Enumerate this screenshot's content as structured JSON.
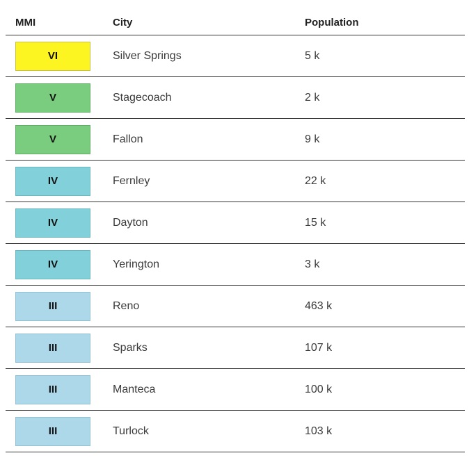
{
  "table": {
    "headers": {
      "mmi": "MMI",
      "city": "City",
      "population": "Population"
    },
    "rows": [
      {
        "mmi": "VI",
        "city": "Silver Springs",
        "population": "5 k",
        "color": "#fdf522",
        "border": "#c8c24a"
      },
      {
        "mmi": "V",
        "city": "Stagecoach",
        "population": "2 k",
        "color": "#7acc7e",
        "border": "#5fae63"
      },
      {
        "mmi": "V",
        "city": "Fallon",
        "population": "9 k",
        "color": "#7acc7e",
        "border": "#5fae63"
      },
      {
        "mmi": "IV",
        "city": "Fernley",
        "population": "22 k",
        "color": "#82d1da",
        "border": "#6bb6bf"
      },
      {
        "mmi": "IV",
        "city": "Dayton",
        "population": "15 k",
        "color": "#82d1da",
        "border": "#6bb6bf"
      },
      {
        "mmi": "IV",
        "city": "Yerington",
        "population": "3 k",
        "color": "#82d1da",
        "border": "#6bb6bf"
      },
      {
        "mmi": "III",
        "city": "Reno",
        "population": "463 k",
        "color": "#add8ea",
        "border": "#93c0d2"
      },
      {
        "mmi": "III",
        "city": "Sparks",
        "population": "107 k",
        "color": "#add8ea",
        "border": "#93c0d2"
      },
      {
        "mmi": "III",
        "city": "Manteca",
        "population": "100 k",
        "color": "#add8ea",
        "border": "#93c0d2"
      },
      {
        "mmi": "III",
        "city": "Turlock",
        "population": "103 k",
        "color": "#add8ea",
        "border": "#93c0d2"
      }
    ]
  }
}
